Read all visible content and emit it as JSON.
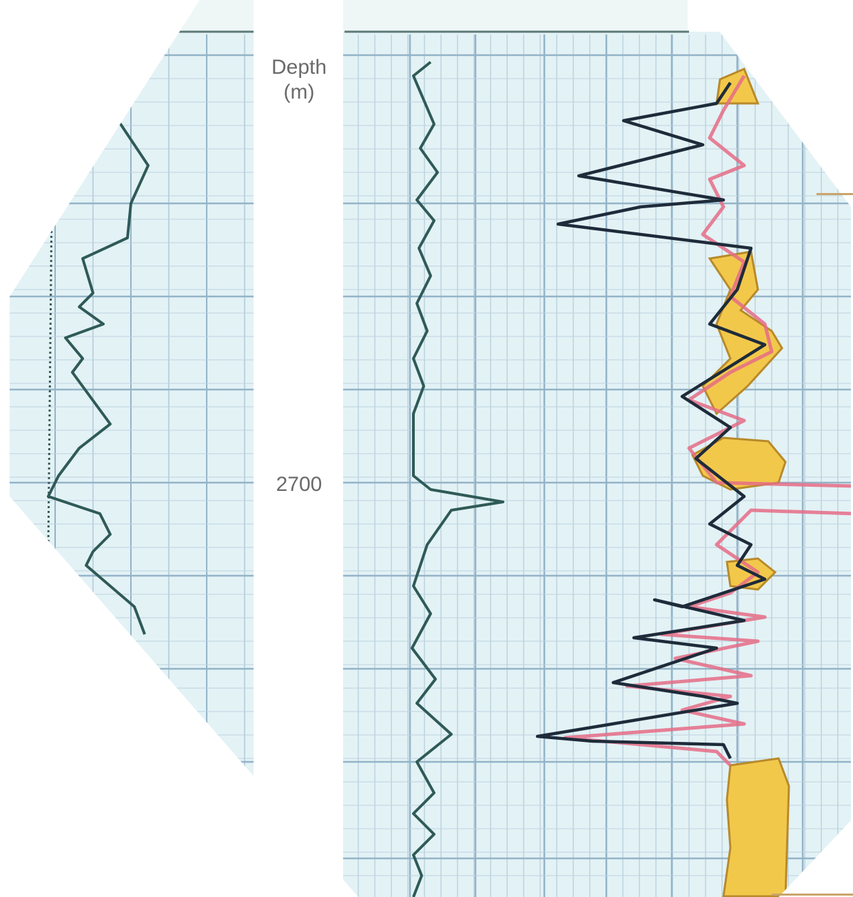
{
  "chart_data": {
    "type": "line",
    "title": "",
    "tracks": [
      {
        "name": "left-track",
        "header": "",
        "curve_color": "#2f5a57"
      },
      {
        "name": "right-track",
        "header": "",
        "curve_colors": [
          "#2f5a57",
          "#1f2a3a",
          "#e07a8a"
        ],
        "fill_color": "#f2c84b"
      }
    ],
    "depth_track": {
      "header_lines": [
        "Depth",
        "(m)"
      ],
      "tick_labels": [
        "2700"
      ]
    },
    "colors": {
      "track_background": "#e3f2f5",
      "grid_major": "#93b3c7",
      "grid_minor": "#bcd3df",
      "sand_fill": "#f2c84b",
      "pink_curve": "#e56c86",
      "dark_curve": "#1e2b3a",
      "teal_curve": "#2f5a57"
    }
  }
}
